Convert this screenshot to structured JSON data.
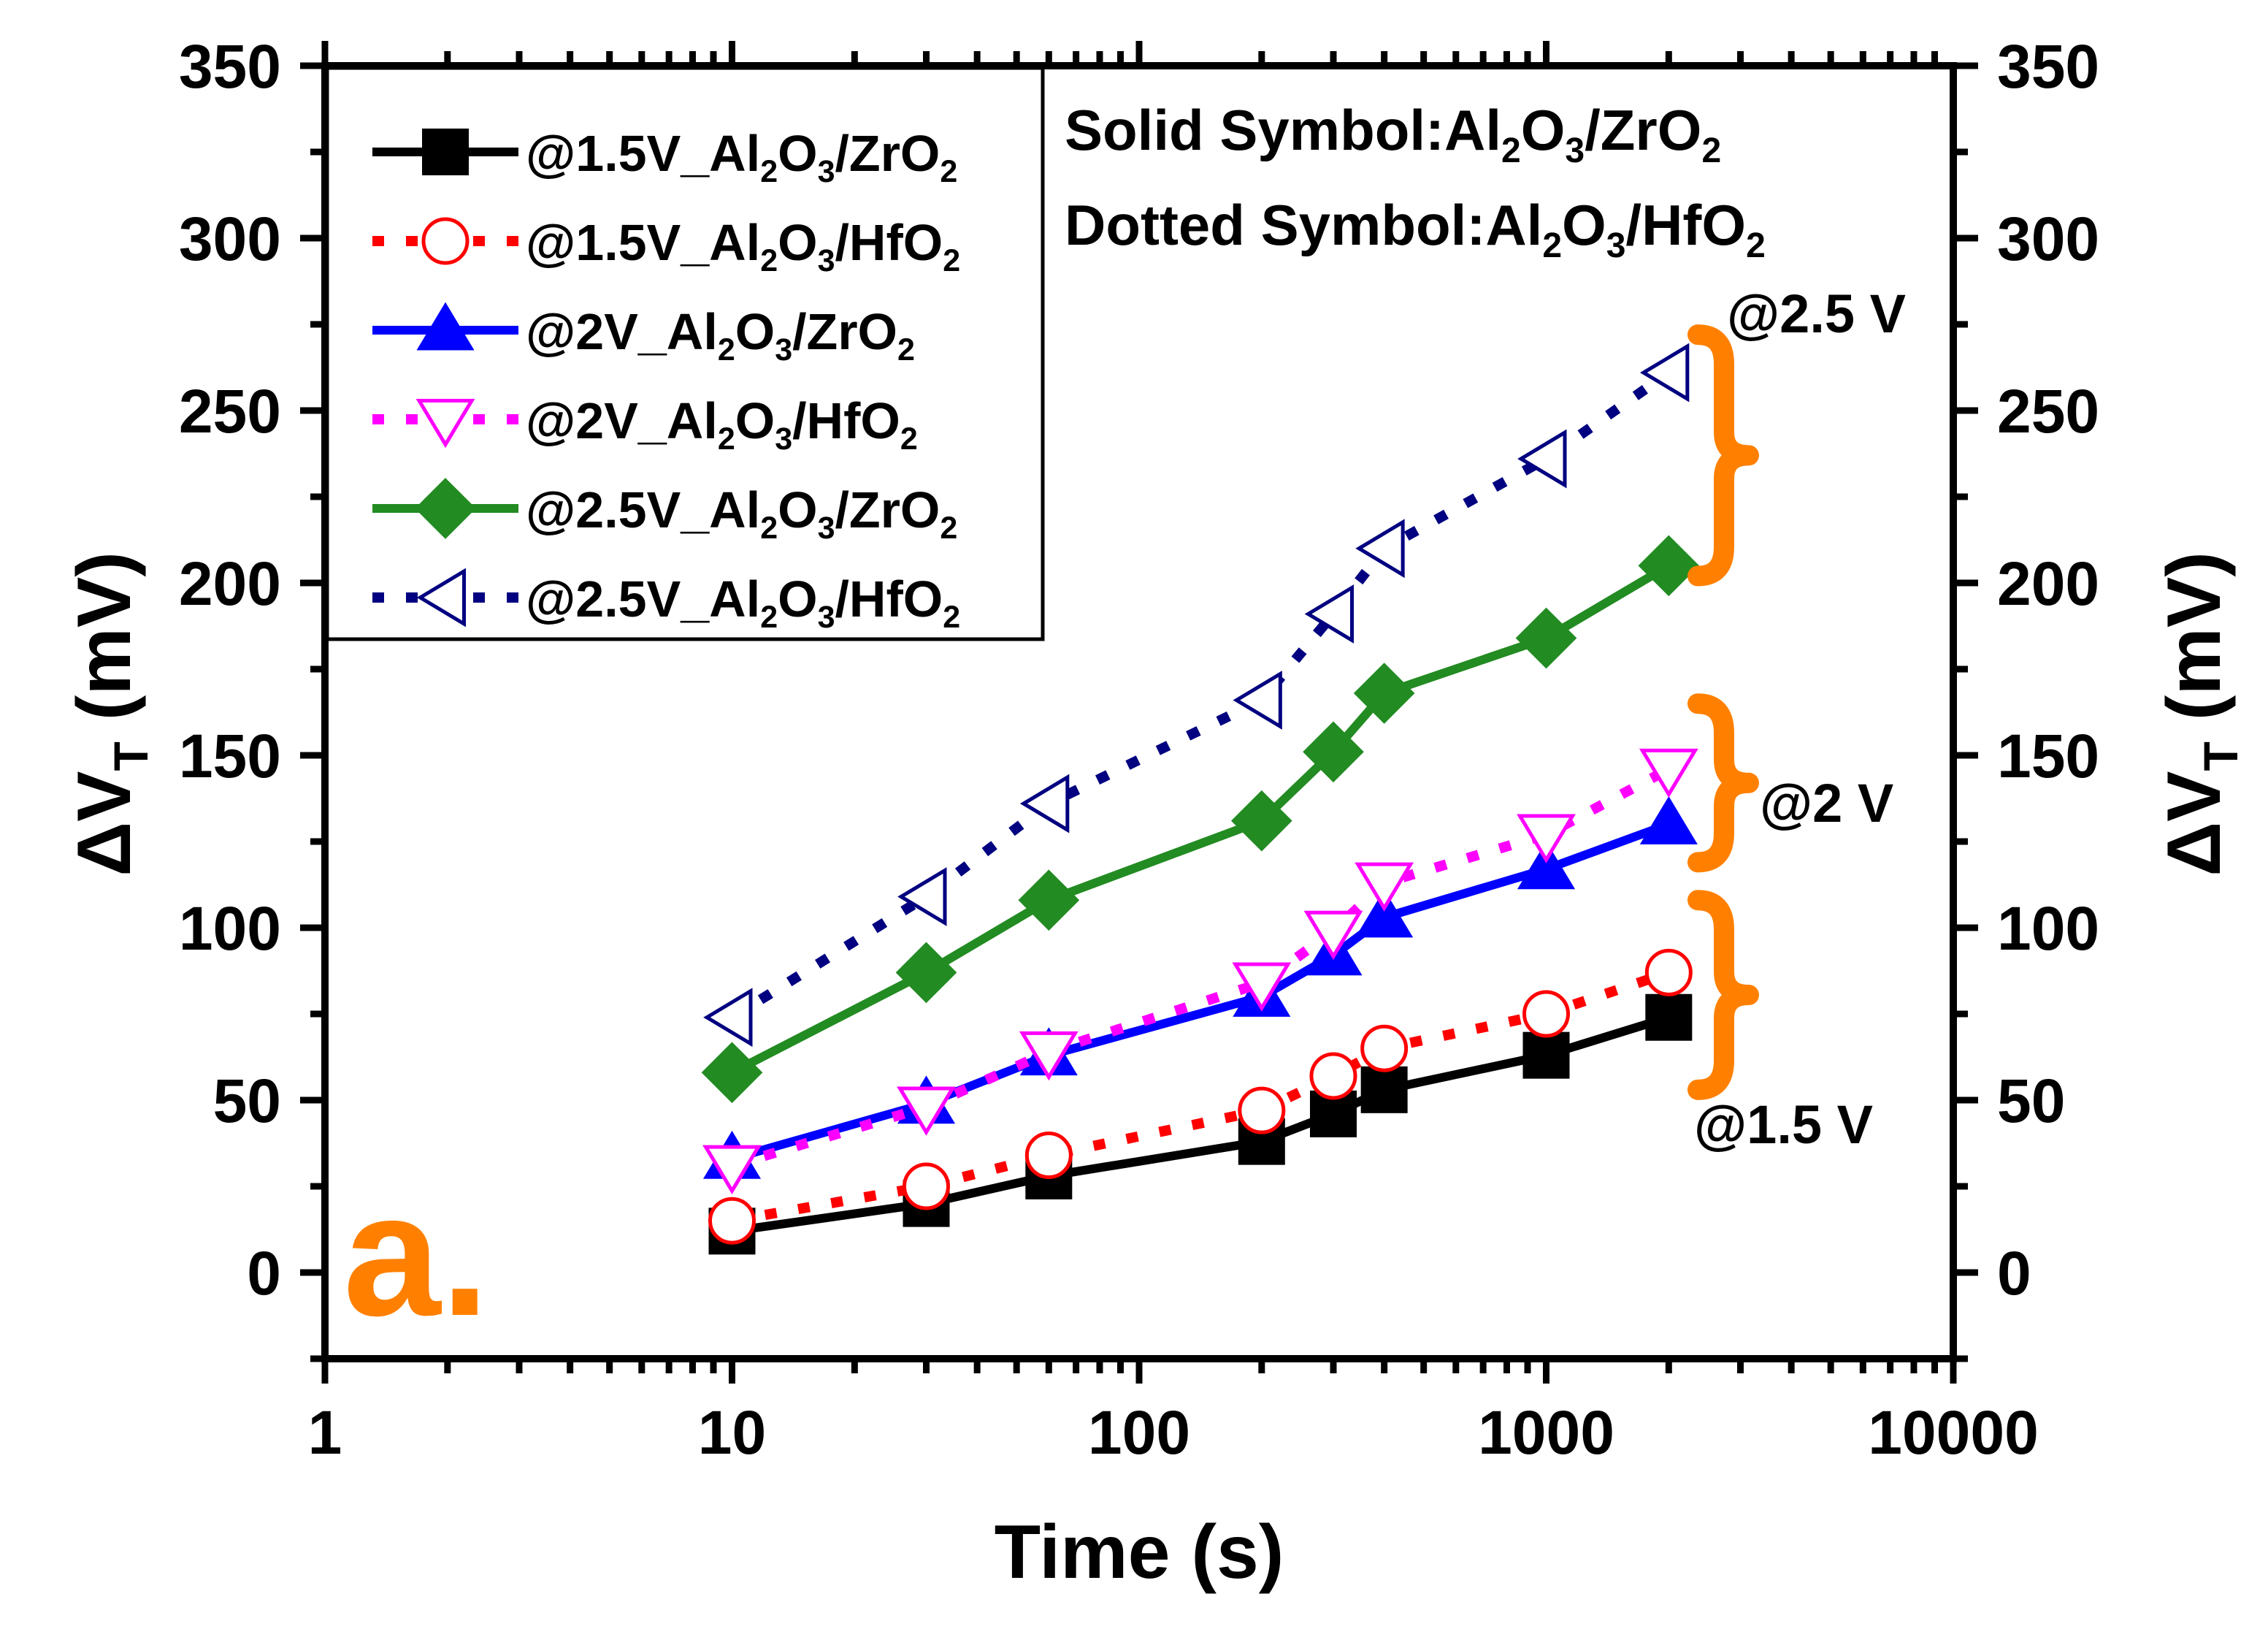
{
  "chart_data": {
    "type": "scatter",
    "title": "",
    "xlabel": "Time (s)",
    "ylabel_main": "ΔV",
    "ylabel_sub": "T",
    "ylabel_unit": " (mV)",
    "x_scale": "log",
    "xlim": [
      1,
      10000
    ],
    "ylim": [
      -25,
      350
    ],
    "x_tick_labels": [
      "1",
      "10",
      "100",
      "1000",
      "10000"
    ],
    "y_tick_labels": [
      "0",
      "50",
      "100",
      "150",
      "200",
      "250",
      "300",
      "350"
    ],
    "panel_label": "a.",
    "annotation_lines": [
      {
        "parts": [
          [
            "Solid Symbol:Al",
            ""
          ],
          [
            "2",
            "sub"
          ],
          [
            "O",
            ""
          ],
          [
            "3",
            "sub"
          ],
          [
            "/ZrO",
            ""
          ],
          [
            "2",
            "sub"
          ]
        ]
      },
      {
        "parts": [
          [
            "Dotted Symbol:Al",
            ""
          ],
          [
            "2",
            "sub"
          ],
          [
            "O",
            ""
          ],
          [
            "3",
            "sub"
          ],
          [
            "/HfO",
            ""
          ],
          [
            "2",
            "sub"
          ]
        ]
      }
    ],
    "group_labels": [
      {
        "text": "@2.5 V",
        "brace_from": 202,
        "brace_to": 272
      },
      {
        "text": "@2 V",
        "brace_from": 119,
        "brace_to": 165
      },
      {
        "text": "@1.5 V",
        "brace_from": 53,
        "brace_to": 108
      }
    ],
    "accent_color": "#ff8000",
    "series": [
      {
        "name": "@1.5V_Al2O3/ZrO2",
        "label_parts": [
          [
            "@1.5V_Al",
            ""
          ],
          [
            "2",
            "sub"
          ],
          [
            "O",
            ""
          ],
          [
            "3",
            "sub"
          ],
          [
            "/ZrO",
            ""
          ],
          [
            "2",
            "sub"
          ]
        ],
        "color": "#000000",
        "line": "solid",
        "marker": "square",
        "filled": true,
        "x": [
          10,
          30,
          60,
          200,
          300,
          400,
          1000,
          2000
        ],
        "values": [
          12,
          20,
          28,
          38,
          46,
          53,
          63,
          74
        ]
      },
      {
        "name": "@1.5V_Al2O3/HfO2",
        "label_parts": [
          [
            "@1.5V_Al",
            ""
          ],
          [
            "2",
            "sub"
          ],
          [
            "O",
            ""
          ],
          [
            "3",
            "sub"
          ],
          [
            "/HfO",
            ""
          ],
          [
            "2",
            "sub"
          ]
        ],
        "color": "#ff0000",
        "line": "dotted",
        "marker": "circle",
        "filled": false,
        "x": [
          10,
          30,
          60,
          200,
          300,
          400,
          1000,
          2000
        ],
        "values": [
          15,
          25,
          34,
          47,
          57,
          65,
          75,
          87
        ]
      },
      {
        "name": "@2V_Al2O3/ZrO2",
        "label_parts": [
          [
            "@2V_Al",
            ""
          ],
          [
            "2",
            "sub"
          ],
          [
            "O",
            ""
          ],
          [
            "3",
            "sub"
          ],
          [
            "/ZrO",
            ""
          ],
          [
            "2",
            "sub"
          ]
        ],
        "color": "#0000ff",
        "line": "solid",
        "marker": "triangle-up",
        "filled": true,
        "x": [
          10,
          30,
          60,
          200,
          300,
          400,
          1000,
          2000
        ],
        "values": [
          33,
          49,
          63,
          80,
          92,
          103,
          117,
          130
        ]
      },
      {
        "name": "@2V_Al2O3/HfO2",
        "label_parts": [
          [
            "@2V_Al",
            ""
          ],
          [
            "2",
            "sub"
          ],
          [
            "O",
            ""
          ],
          [
            "3",
            "sub"
          ],
          [
            "/HfO",
            ""
          ],
          [
            "2",
            "sub"
          ]
        ],
        "color": "#ff00ff",
        "line": "dotted",
        "marker": "triangle-down",
        "filled": false,
        "x": [
          10,
          30,
          60,
          200,
          300,
          400,
          1000,
          2000
        ],
        "values": [
          31,
          48,
          64,
          84,
          99,
          113,
          127,
          146
        ]
      },
      {
        "name": "@2.5V_Al2O3/ZrO2",
        "label_parts": [
          [
            "@2.5V_Al",
            ""
          ],
          [
            "2",
            "sub"
          ],
          [
            "O",
            ""
          ],
          [
            "3",
            "sub"
          ],
          [
            "/ZrO",
            ""
          ],
          [
            "2",
            "sub"
          ]
        ],
        "color": "#228b22",
        "line": "solid",
        "marker": "diamond",
        "filled": true,
        "x": [
          10,
          30,
          60,
          200,
          300,
          400,
          1000,
          2000
        ],
        "values": [
          58,
          87,
          108,
          131,
          151,
          168,
          184,
          205
        ]
      },
      {
        "name": "@2.5V_Al2O3/HfO2",
        "label_parts": [
          [
            "@2.5V_Al",
            ""
          ],
          [
            "2",
            "sub"
          ],
          [
            "O",
            ""
          ],
          [
            "3",
            "sub"
          ],
          [
            "/HfO",
            ""
          ],
          [
            "2",
            "sub"
          ]
        ],
        "color": "#000080",
        "line": "dotted",
        "marker": "triangle-left",
        "filled": false,
        "x": [
          10,
          30,
          60,
          200,
          300,
          400,
          1000,
          2000
        ],
        "values": [
          74,
          109,
          136,
          166,
          191,
          210,
          236,
          261
        ]
      }
    ]
  }
}
